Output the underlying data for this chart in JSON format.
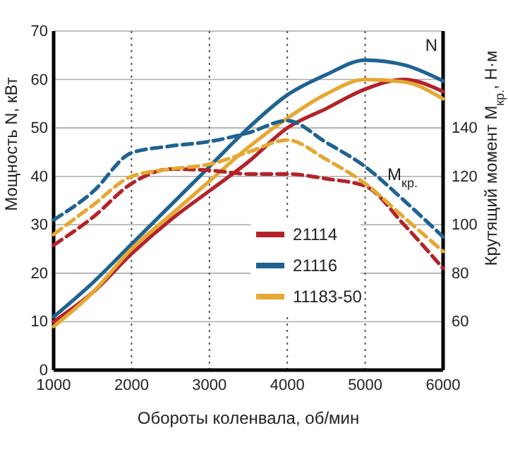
{
  "chart_data": {
    "type": "line",
    "xlabel": "Обороты коленвала, об/мин",
    "ylabel": "Мощность N, кВт",
    "y2label": "Крутящий момент M$_{кр.}$, Н·м",
    "x": [
      1000,
      1500,
      2000,
      2500,
      3000,
      3500,
      4000,
      4500,
      5000,
      5500,
      6000
    ],
    "xlim": [
      1000,
      6000
    ],
    "xticks": [
      1000,
      2000,
      3000,
      4000,
      5000,
      6000
    ],
    "ylim": [
      0,
      70
    ],
    "yticks": [
      0,
      10,
      20,
      30,
      40,
      50,
      60,
      70
    ],
    "y2lim": [
      40,
      180
    ],
    "y2ticks": [
      60,
      80,
      100,
      120,
      140
    ],
    "grid": true,
    "legend": "center",
    "line_style": "solid",
    "annotations": [
      "N",
      "M$_{кр.}$"
    ],
    "series": [
      {
        "name": "21114",
        "color": "#b3232a",
        "values": [
          10,
          16,
          24,
          31,
          37,
          43,
          50,
          54,
          58,
          60,
          57.5
        ]
      },
      {
        "name": "21116",
        "color": "#1f6391",
        "values": [
          11,
          18,
          26,
          34,
          42,
          50,
          56.8,
          61,
          64,
          63,
          59.7
        ]
      },
      {
        "name": "11183-50",
        "color": "#e5a832",
        "values": [
          9,
          16,
          25,
          32,
          39,
          46,
          52,
          57,
          60,
          59.5,
          56
        ]
      },
      {
        "color": "#b3232a",
        "axis": "y2",
        "line_style": "dashed",
        "values": [
          91.6,
          103,
          117,
          123,
          122.5,
          121,
          121,
          119,
          116,
          100,
          82
        ]
      },
      {
        "color": "#1f6391",
        "axis": "y2",
        "line_style": "dashed",
        "values": [
          102,
          113.5,
          129.7,
          132.5,
          134.4,
          138,
          143,
          134,
          124,
          110,
          95
        ]
      },
      {
        "color": "#e5a832",
        "axis": "y2",
        "line_style": "dashed",
        "values": [
          96,
          108,
          120,
          123,
          125,
          130,
          135,
          127,
          117,
          103,
          89
        ]
      }
    ]
  }
}
